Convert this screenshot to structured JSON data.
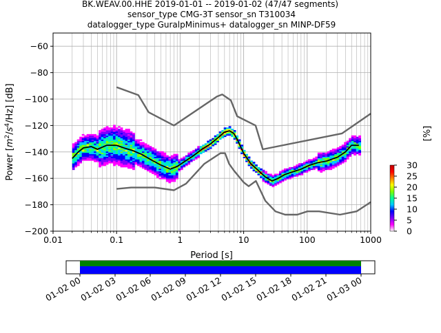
{
  "title_lines": [
    "BK.WEAV.00.HHE   2019-01-01 -- 2019-01-02  (47/47 segments)",
    "sensor_type CMG-3T sensor_sn T310034",
    "datalogger_type GuralpMinimus+ datalogger_sn MINP-DF59"
  ],
  "chart_data": {
    "type": "heatmap",
    "subtype": "probabilistic power spectral density",
    "xlabel": "Period [s]",
    "ylabel_parts": [
      "Power [",
      "m",
      "2",
      "/",
      "s",
      "4",
      "/Hz] [dB]"
    ],
    "xscale": "log",
    "xlim": [
      0.01,
      1000
    ],
    "ylim": [
      -200,
      -50
    ],
    "xticks": [
      0.01,
      0.1,
      1,
      10,
      100,
      1000
    ],
    "xtick_labels": [
      "0.01",
      "0.1",
      "1",
      "10",
      "100",
      "1000"
    ],
    "yticks": [
      -200,
      -180,
      -160,
      -140,
      -120,
      -100,
      -80,
      -60
    ],
    "ytick_labels": [
      "−200",
      "−180",
      "−160",
      "−140",
      "−120",
      "−100",
      "−80",
      "−60"
    ],
    "grid": true,
    "noise_models": {
      "high_noise_model": [
        [
          0.1,
          -91
        ],
        [
          0.22,
          -97
        ],
        [
          0.32,
          -110
        ],
        [
          0.8,
          -120
        ],
        [
          3.8,
          -98
        ],
        [
          4.6,
          -96.5
        ],
        [
          6.3,
          -101
        ],
        [
          7.9,
          -113
        ],
        [
          15.4,
          -120
        ],
        [
          20,
          -138
        ],
        [
          354,
          -126
        ],
        [
          1000,
          -111
        ]
      ],
      "low_noise_model": [
        [
          0.1,
          -168
        ],
        [
          0.17,
          -167
        ],
        [
          0.4,
          -167
        ],
        [
          0.8,
          -169
        ],
        [
          1.24,
          -164
        ],
        [
          2.4,
          -149
        ],
        [
          4.3,
          -141
        ],
        [
          5.1,
          -141
        ],
        [
          5.9,
          -149
        ],
        [
          7,
          -154
        ],
        [
          10,
          -163
        ],
        [
          12,
          -166
        ],
        [
          15.6,
          -162
        ],
        [
          21.9,
          -177
        ],
        [
          31.6,
          -185
        ],
        [
          45,
          -187.5
        ],
        [
          70,
          -187.5
        ],
        [
          101,
          -185
        ],
        [
          154,
          -185
        ],
        [
          328,
          -187.5
        ],
        [
          600,
          -185
        ],
        [
          1000,
          -178
        ]
      ]
    },
    "psd_mode_curve": [
      [
        0.02,
        -145
      ],
      [
        0.025,
        -140
      ],
      [
        0.03,
        -137
      ],
      [
        0.04,
        -136
      ],
      [
        0.05,
        -138
      ],
      [
        0.07,
        -135
      ],
      [
        0.1,
        -135
      ],
      [
        0.13,
        -137
      ],
      [
        0.18,
        -139
      ],
      [
        0.25,
        -142
      ],
      [
        0.35,
        -146
      ],
      [
        0.5,
        -150
      ],
      [
        0.7,
        -153
      ],
      [
        0.9,
        -151
      ],
      [
        1.2,
        -147
      ],
      [
        1.6,
        -143
      ],
      [
        2.2,
        -138
      ],
      [
        3,
        -134
      ],
      [
        4,
        -129
      ],
      [
        5,
        -125
      ],
      [
        6,
        -124
      ],
      [
        7,
        -126
      ],
      [
        8,
        -131
      ],
      [
        10,
        -141
      ],
      [
        13,
        -149
      ],
      [
        17,
        -154
      ],
      [
        22,
        -159
      ],
      [
        28,
        -162
      ],
      [
        35,
        -160
      ],
      [
        45,
        -157
      ],
      [
        60,
        -155
      ],
      [
        80,
        -153
      ],
      [
        110,
        -150
      ],
      [
        150,
        -148
      ],
      [
        200,
        -147
      ],
      [
        300,
        -144
      ],
      [
        400,
        -140
      ],
      [
        500,
        -135
      ],
      [
        650,
        -135
      ]
    ],
    "psd_period_range": [
      0.02,
      700
    ],
    "colorbar": {
      "label": "[%]",
      "range": [
        0,
        30
      ],
      "ticks": [
        "0",
        "5",
        "10",
        "15",
        "20",
        "25",
        "30"
      ],
      "colors": [
        "#ffffff",
        "#ff00ff",
        "#7a00ff",
        "#0000ff",
        "#00c8ff",
        "#00ff99",
        "#7fff00",
        "#ffff00",
        "#ff8000",
        "#ff0000",
        "#c00000"
      ]
    },
    "time_coverage": {
      "tick_labels": [
        "01-02 00",
        "01-02 03",
        "01-02 06",
        "01-02 09",
        "01-02 12",
        "01-02 15",
        "01-02 18",
        "01-02 21",
        "01-03 00"
      ],
      "data_color": "#008000",
      "gap_color": "#0000ff"
    },
    "colors": {
      "noise_model": "#666666",
      "mode_curve": "#000000",
      "grid": "#b0b0b0"
    }
  }
}
